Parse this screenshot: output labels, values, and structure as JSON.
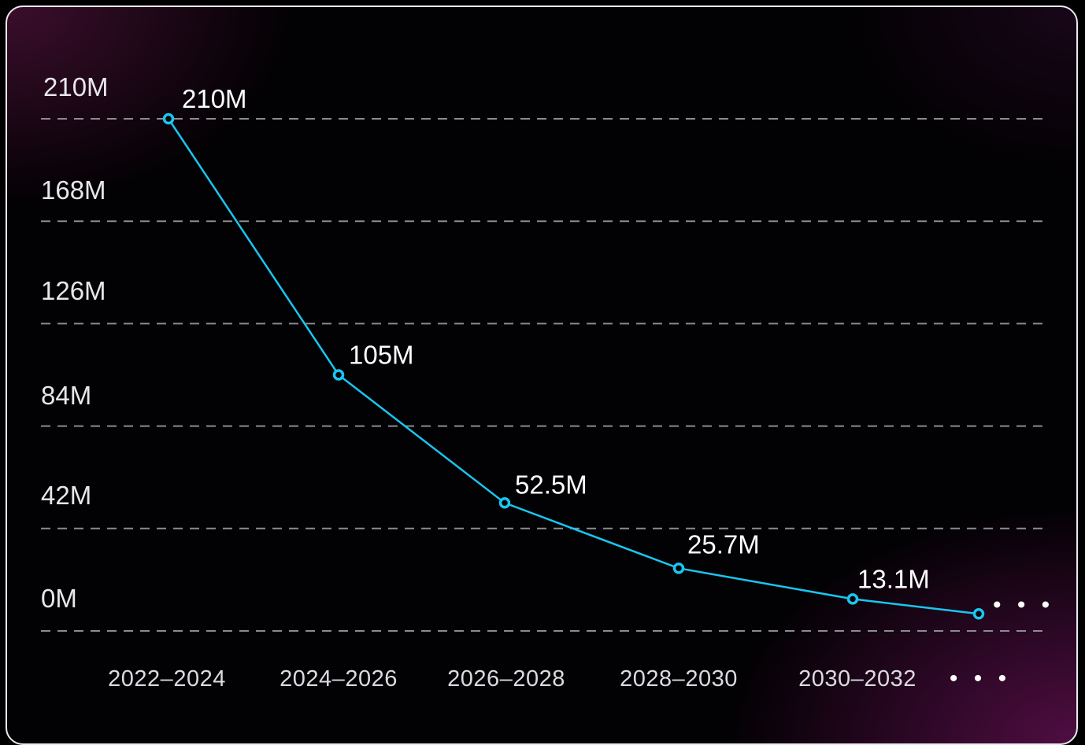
{
  "chart_data": {
    "type": "line",
    "categories": [
      "2022–2024",
      "2024–2026",
      "2026–2028",
      "2028–2030",
      "2030–2032",
      "• • •"
    ],
    "values": [
      210,
      105,
      52.5,
      25.7,
      13.1,
      7
    ],
    "data_labels": [
      "210M",
      "105M",
      "52.5M",
      "25.7M",
      "13.1M",
      "• • •"
    ],
    "y_ticks": [
      210,
      168,
      126,
      84,
      42,
      0
    ],
    "y_tick_labels": [
      "210M",
      "168M",
      "126M",
      "84M",
      "42M",
      "0M"
    ],
    "ylim": [
      0,
      210
    ],
    "grid": true,
    "line_color": "#19c6f0",
    "title": "",
    "xlabel": "",
    "ylabel": ""
  }
}
